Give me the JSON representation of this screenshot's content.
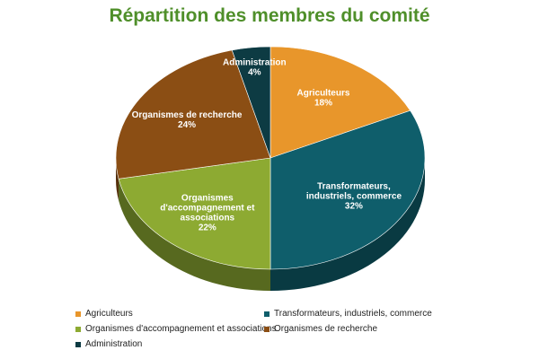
{
  "chart_data": {
    "type": "pie",
    "title": "Répartition des membres du comité",
    "slices": [
      {
        "label_lines": [
          "Agriculteurs"
        ],
        "legend": "Agriculteurs",
        "value": 18,
        "pct_text": "18%",
        "color": "#e8962b"
      },
      {
        "label_lines": [
          "Transformateurs,",
          "industriels, commerce"
        ],
        "legend": "Transformateurs, industriels, commerce",
        "value": 32,
        "pct_text": "32%",
        "color": "#0f5e6b"
      },
      {
        "label_lines": [
          "Organismes",
          "d'accompagnement et",
          "associations"
        ],
        "legend": "Organismes d'accompagnement et associations",
        "value": 22,
        "pct_text": "22%",
        "color": "#8daa32"
      },
      {
        "label_lines": [
          "Organismes de recherche"
        ],
        "legend": "Organismes de recherche",
        "value": 24,
        "pct_text": "24%",
        "color": "#8b4e14"
      },
      {
        "label_lines": [
          "Administration"
        ],
        "legend": "Administration",
        "value": 4,
        "pct_text": "4%",
        "color": "#0d3b43"
      }
    ],
    "legend_position": "bottom",
    "title_color": "#4f8f2a",
    "label_color": "#ffffff"
  }
}
